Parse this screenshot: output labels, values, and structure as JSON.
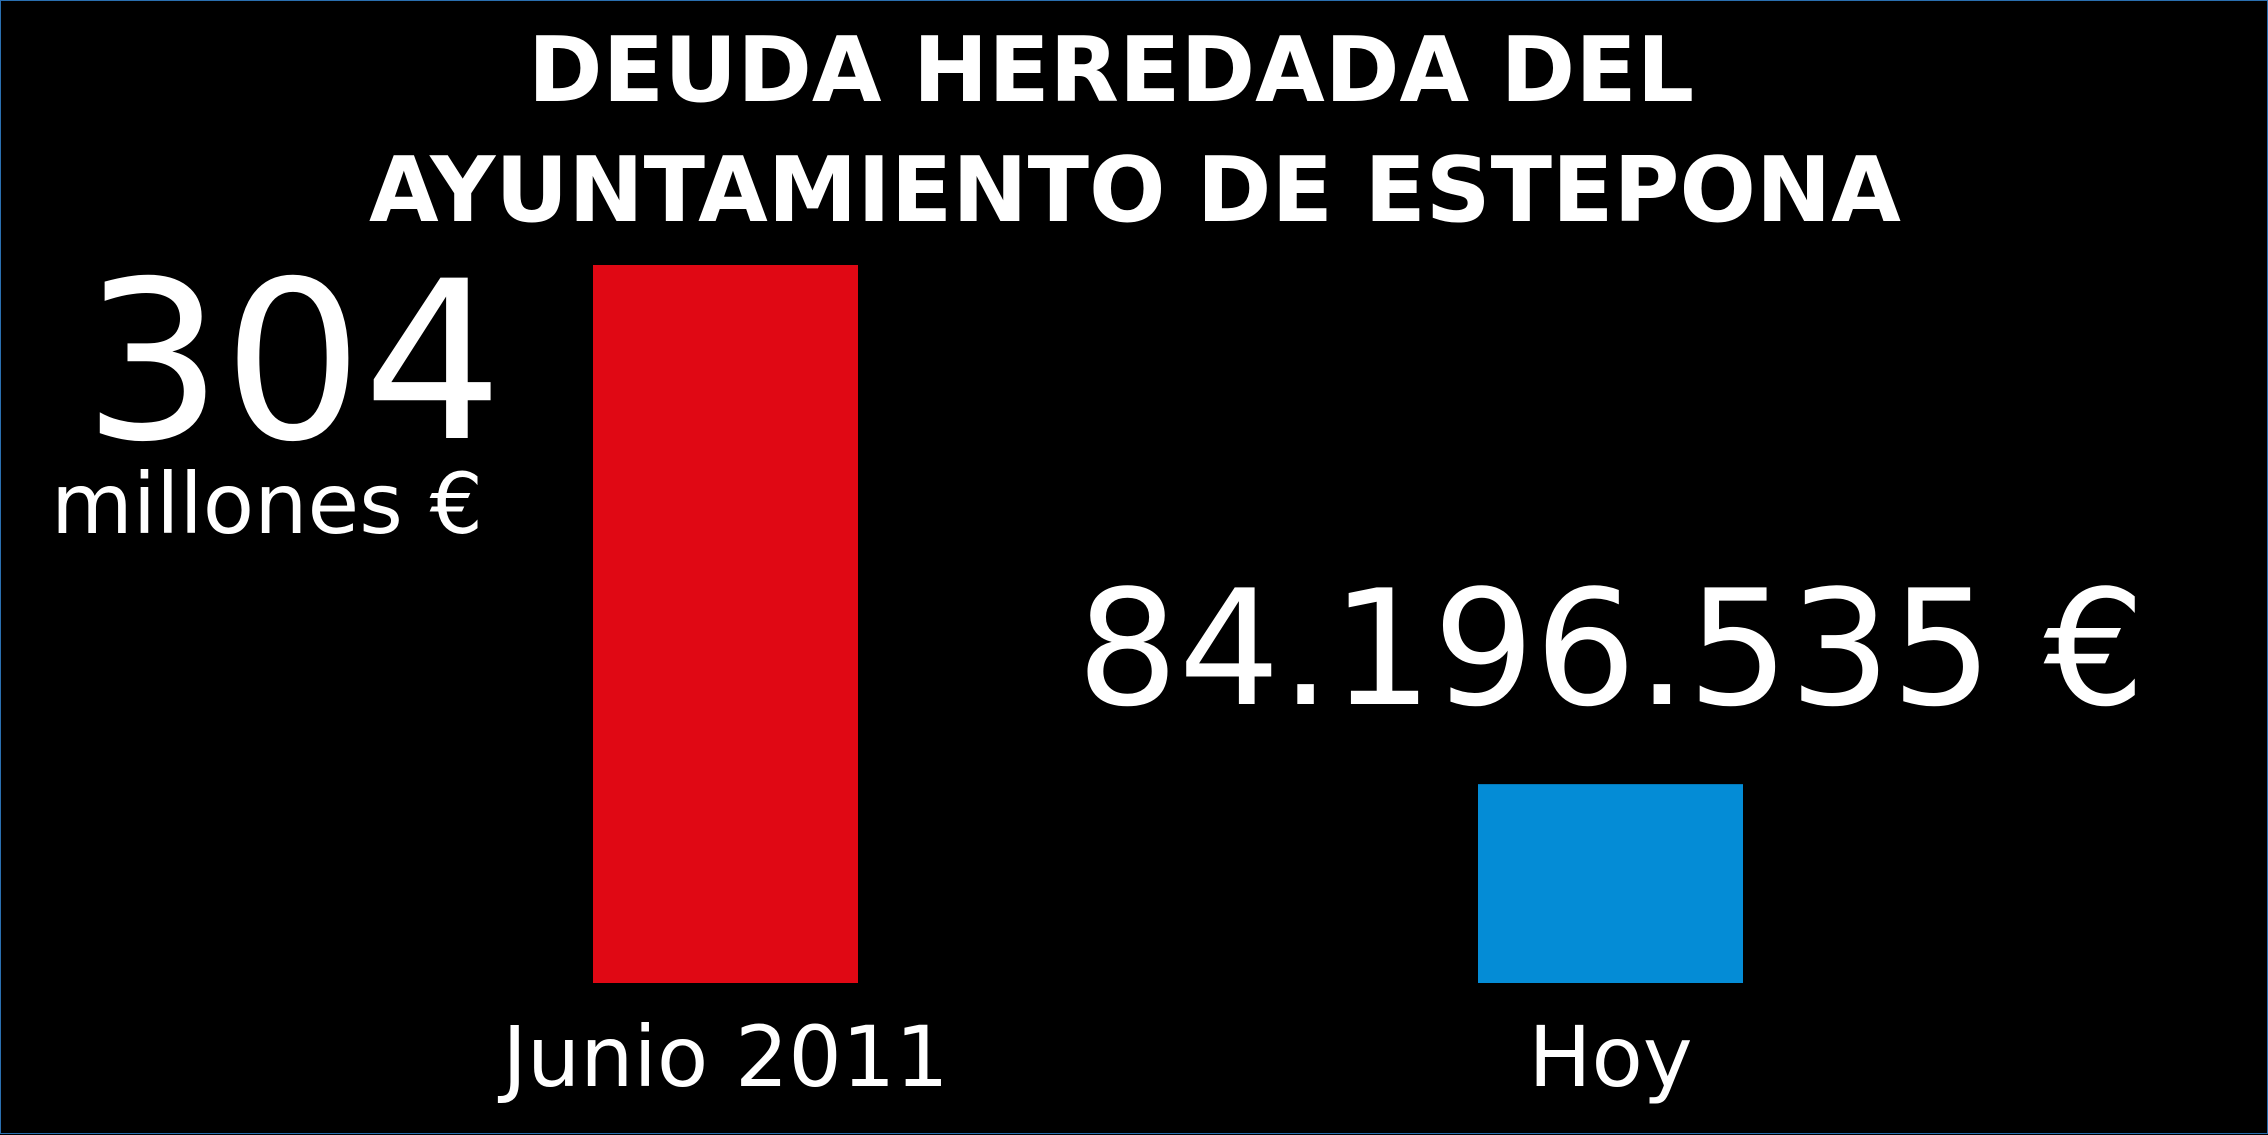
{
  "colors": {
    "background": "#000000",
    "text": "#ffffff",
    "border": "#2a6fb0"
  },
  "chart_data": {
    "type": "bar",
    "title_lines": [
      "DEUDA HEREDADA DEL",
      "AYUNTAMIENTO DE ESTEPONA"
    ],
    "categories": [
      "Junio 2011",
      "Hoy"
    ],
    "values": [
      304000000,
      84196535
    ],
    "value_labels": [
      {
        "main": "304",
        "sub": "millones €"
      },
      {
        "main": "84.196.535 €",
        "sub": ""
      }
    ],
    "bar_colors": [
      "#e00814",
      "#048cd6"
    ],
    "ylim": [
      0,
      304000000
    ],
    "grid": false,
    "legend": "none",
    "xlabel": "",
    "ylabel": ""
  }
}
